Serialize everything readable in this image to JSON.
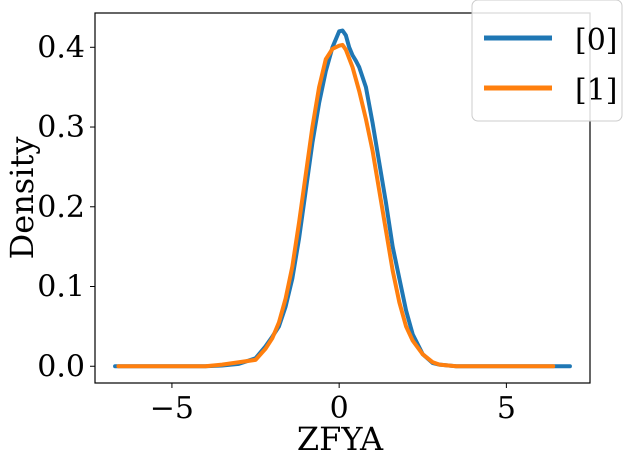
{
  "chart_data": {
    "type": "line",
    "title": "",
    "xlabel": "ZFYA",
    "ylabel": "Density",
    "xlim": [
      -7.3,
      7.5
    ],
    "ylim": [
      -0.021,
      0.443
    ],
    "xticks": [
      -5,
      0,
      5
    ],
    "xtick_labels": [
      "−5",
      "0",
      "5"
    ],
    "yticks": [
      0.0,
      0.1,
      0.2,
      0.3,
      0.4
    ],
    "ytick_labels": [
      "0.0",
      "0.1",
      "0.2",
      "0.3",
      "0.4"
    ],
    "grid": false,
    "legend": {
      "placement": "top-right"
    },
    "series": [
      {
        "name": "[0]",
        "color": "#1f77b4",
        "x": [
          -6.7,
          -5.0,
          -4.0,
          -3.5,
          -3.0,
          -2.5,
          -2.2,
          -2.0,
          -1.8,
          -1.6,
          -1.4,
          -1.2,
          -1.0,
          -0.8,
          -0.6,
          -0.4,
          -0.2,
          0.0,
          0.1,
          0.2,
          0.3,
          0.4,
          0.5,
          0.6,
          0.8,
          1.0,
          1.2,
          1.4,
          1.6,
          1.8,
          2.0,
          2.2,
          2.5,
          2.8,
          3.0,
          3.5,
          4.0,
          5.0,
          6.0,
          6.9
        ],
        "y": [
          0.0,
          0.0,
          0.0,
          0.001,
          0.003,
          0.01,
          0.025,
          0.037,
          0.05,
          0.075,
          0.11,
          0.16,
          0.22,
          0.28,
          0.33,
          0.37,
          0.4,
          0.42,
          0.421,
          0.415,
          0.4,
          0.39,
          0.383,
          0.375,
          0.35,
          0.305,
          0.255,
          0.205,
          0.15,
          0.11,
          0.07,
          0.04,
          0.015,
          0.004,
          0.002,
          0.0,
          0.0,
          0.0,
          0.0,
          0.0
        ]
      },
      {
        "name": "[1]",
        "color": "#ff7f0e",
        "x": [
          -6.6,
          -5.0,
          -4.0,
          -3.5,
          -3.0,
          -2.5,
          -2.2,
          -2.0,
          -1.8,
          -1.6,
          -1.4,
          -1.2,
          -1.0,
          -0.8,
          -0.6,
          -0.4,
          -0.2,
          0.0,
          0.1,
          0.2,
          0.4,
          0.6,
          0.8,
          1.0,
          1.2,
          1.4,
          1.6,
          1.8,
          2.0,
          2.2,
          2.5,
          2.8,
          3.0,
          3.5,
          4.0,
          5.0,
          6.0,
          6.4
        ],
        "y": [
          0.0,
          0.0,
          0.0,
          0.002,
          0.005,
          0.008,
          0.022,
          0.035,
          0.055,
          0.085,
          0.125,
          0.18,
          0.24,
          0.3,
          0.35,
          0.385,
          0.398,
          0.402,
          0.403,
          0.397,
          0.375,
          0.345,
          0.31,
          0.27,
          0.22,
          0.17,
          0.12,
          0.08,
          0.05,
          0.032,
          0.015,
          0.005,
          0.002,
          0.0,
          0.0,
          0.0,
          0.0,
          0.0
        ]
      }
    ]
  }
}
